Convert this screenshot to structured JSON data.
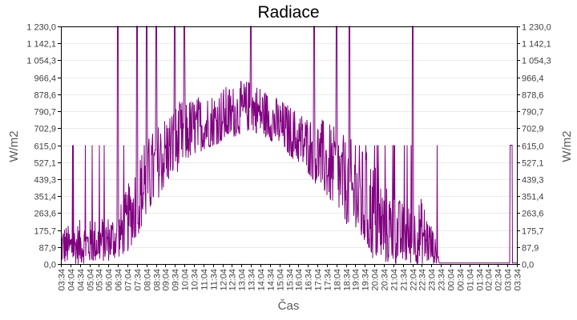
{
  "chart": {
    "title": "Radiace",
    "xlabel": "Čas",
    "ylabel_left": "W/m2",
    "ylabel_right": "W/m2",
    "series_color": "#800080",
    "grid_color": "#ebebeb",
    "axis_color": "#000000"
  },
  "chart_data": {
    "type": "line",
    "title": "Radiace",
    "xlabel": "Čas",
    "ylabel": "W/m2",
    "ylim": [
      0,
      1230
    ],
    "grid": true,
    "legend": "none",
    "y_ticks": [
      "0,0",
      "87,9",
      "175,7",
      "263,6",
      "351,4",
      "439,3",
      "527,1",
      "615,0",
      "702,9",
      "790,7",
      "878,6",
      "966,4",
      "1 054,3",
      "1 142,1",
      "1 230,0"
    ],
    "x_ticks": [
      "03:34",
      "04:04",
      "04:34",
      "05:04",
      "05:34",
      "06:04",
      "06:34",
      "07:04",
      "07:34",
      "08:04",
      "08:34",
      "09:04",
      "09:34",
      "10:04",
      "10:34",
      "11:04",
      "11:34",
      "12:04",
      "12:34",
      "13:04",
      "13:34",
      "14:04",
      "14:34",
      "15:04",
      "15:34",
      "16:04",
      "16:34",
      "17:04",
      "17:34",
      "18:04",
      "18:34",
      "19:04",
      "19:34",
      "20:04",
      "20:34",
      "21:04",
      "21:34",
      "22:04",
      "22:34",
      "23:04",
      "23:34",
      "00:04",
      "00:34",
      "01:04",
      "01:34",
      "02:04",
      "02:34",
      "03:04",
      "03:34"
    ],
    "baseline": [
      0,
      0,
      0,
      5,
      10,
      15,
      30,
      60,
      140,
      230,
      320,
      400,
      460,
      520,
      560,
      590,
      610,
      630,
      650,
      675,
      690,
      670,
      640,
      610,
      560,
      520,
      470,
      400,
      340,
      280,
      210,
      140,
      70,
      10,
      0,
      0,
      0,
      0,
      0,
      0,
      5,
      5,
      5,
      5,
      5,
      5,
      5,
      5,
      5
    ],
    "typical_max": [
      220,
      200,
      230,
      230,
      250,
      260,
      280,
      400,
      560,
      650,
      720,
      790,
      830,
      860,
      870,
      880,
      900,
      920,
      930,
      950,
      960,
      930,
      890,
      860,
      830,
      800,
      780,
      770,
      740,
      700,
      660,
      640,
      600,
      550,
      420,
      380,
      320,
      300,
      350,
      220,
      5,
      5,
      5,
      5,
      5,
      5,
      5,
      5,
      615
    ],
    "spikes_to_max_times": [
      "06:34",
      "07:34",
      "08:04",
      "08:34",
      "09:34",
      "10:04",
      "13:34",
      "16:54",
      "18:04",
      "18:44",
      "22:04"
    ],
    "series": [
      {
        "name": "Radiace",
        "color": "#800080"
      }
    ]
  }
}
